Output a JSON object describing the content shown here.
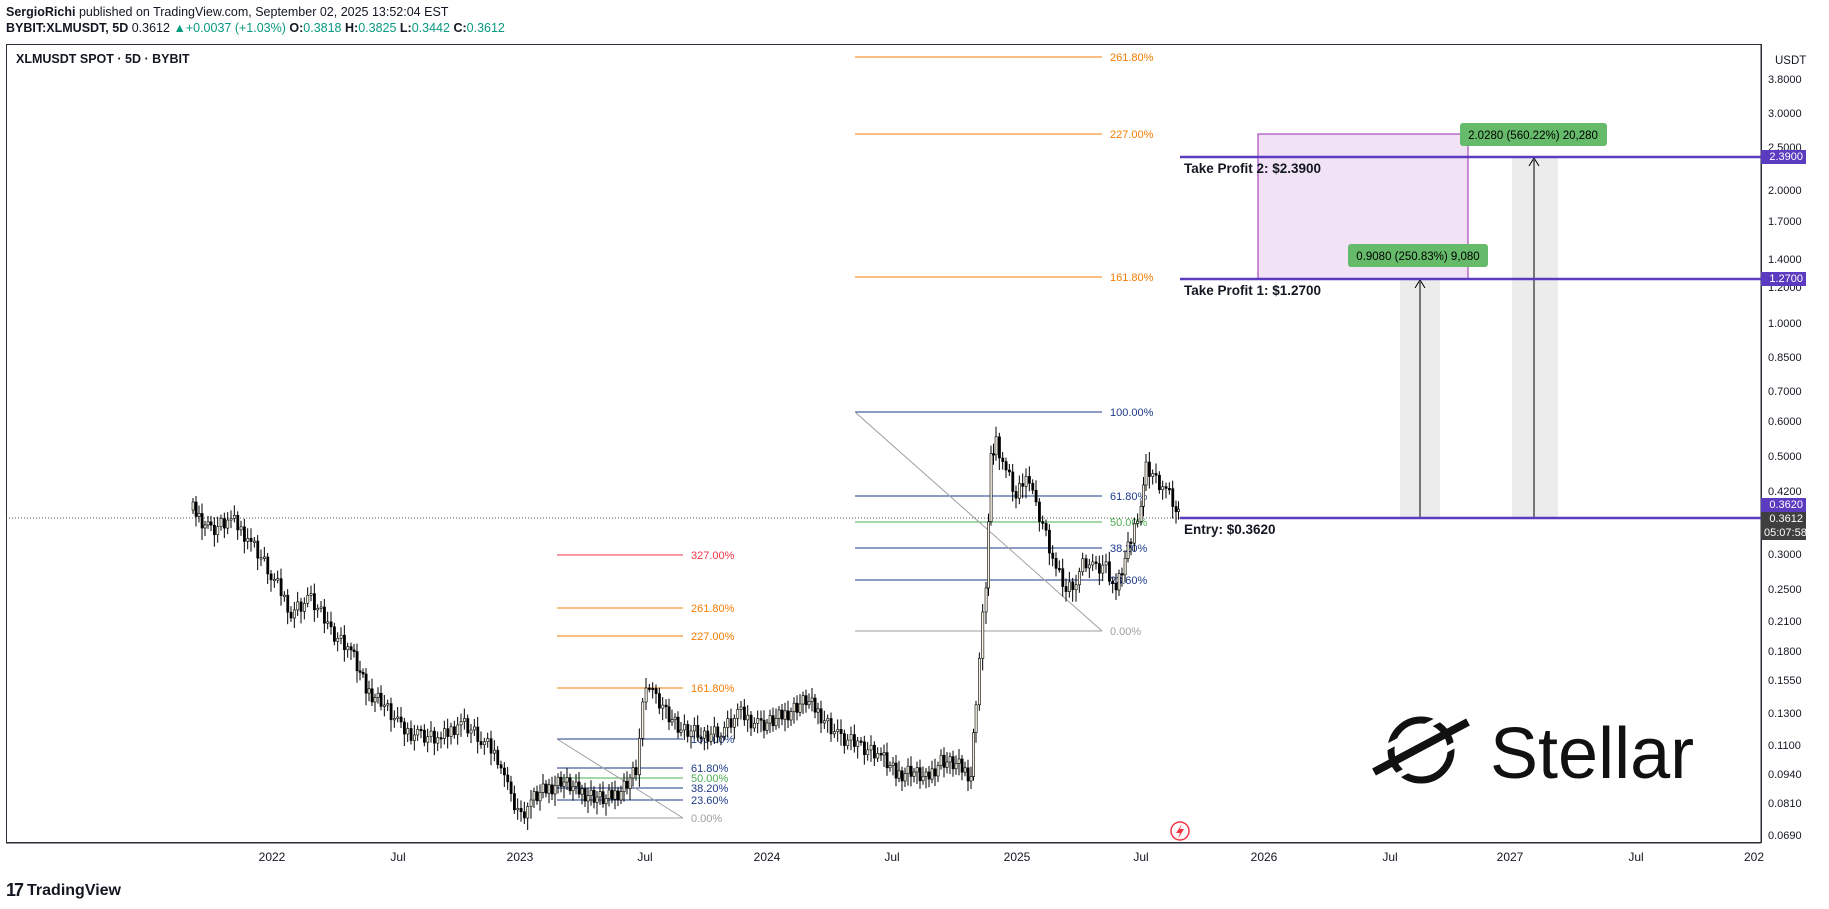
{
  "header": {
    "author": "SergioRichi",
    "published": "published on TradingView.com, September 02, 2025 13:52:04 EST",
    "symbol": "BYBIT:XLMUSDT, 5D",
    "last": "0.3612",
    "change": "+0.0037 (+1.03%)",
    "o_label": "O:",
    "o_value": "0.3818",
    "h_label": "H:",
    "h_value": "0.3825",
    "l_label": "L:",
    "l_value": "0.3442",
    "c_label": "C:",
    "c_value": "0.3612"
  },
  "chart": {
    "title": "XLMUSDT SPOT · 5D · BYBIT",
    "unit": "USDT",
    "x_ticks": [
      "2022",
      "Jul",
      "2023",
      "Jul",
      "2024",
      "Jul",
      "2025",
      "Jul",
      "2026",
      "Jul",
      "2027",
      "Jul",
      "202"
    ],
    "y_ticks": [
      "3.8000",
      "3.0000",
      "2.5000",
      "2.0000",
      "1.7000",
      "1.4000",
      "1.2000",
      "1.0000",
      "0.8500",
      "0.7000",
      "0.6000",
      "0.5000",
      "0.4200",
      "0.3000",
      "0.2500",
      "0.2100",
      "0.1800",
      "0.1550",
      "0.1300",
      "0.1100",
      "0.0940",
      "0.0810",
      "0.0690"
    ],
    "price_tags": {
      "tp2": "2.3900",
      "tp1": "1.2700",
      "entry": "0.3620",
      "last": "0.3612",
      "countdown": "05:07:58"
    }
  },
  "drawings": {
    "take_profit_2": "Take Profit 2: $2.3900",
    "take_profit_1": "Take Profit 1: $1.2700",
    "entry": "Entry: $0.3620",
    "measure_2": "2.0280 (560.22%) 20,280",
    "measure_1": "0.9080 (250.83%) 9,080",
    "fib_large": [
      "261.80%",
      "227.00%",
      "161.80%",
      "100.00%",
      "61.80%",
      "50.00%",
      "38.20%",
      "23.60%",
      "0.00%"
    ],
    "fib_small": [
      "327.00%",
      "261.80%",
      "227.00%",
      "161.80%",
      "100.00%",
      "61.80%",
      "50.00%",
      "38.20%",
      "23.60%",
      "0.00%"
    ],
    "brand": "Stellar"
  },
  "footer": {
    "brand": "TradingView"
  },
  "colors": {
    "accent": "#5b3bbf",
    "fib_orange": "#f57c00",
    "fib_red": "#f23645",
    "fib_blue": "#1e3a8a",
    "fib_green": "#4caf50",
    "measure_green": "#66bb6a",
    "up": "#f5f0e0",
    "down": "#000000"
  }
}
